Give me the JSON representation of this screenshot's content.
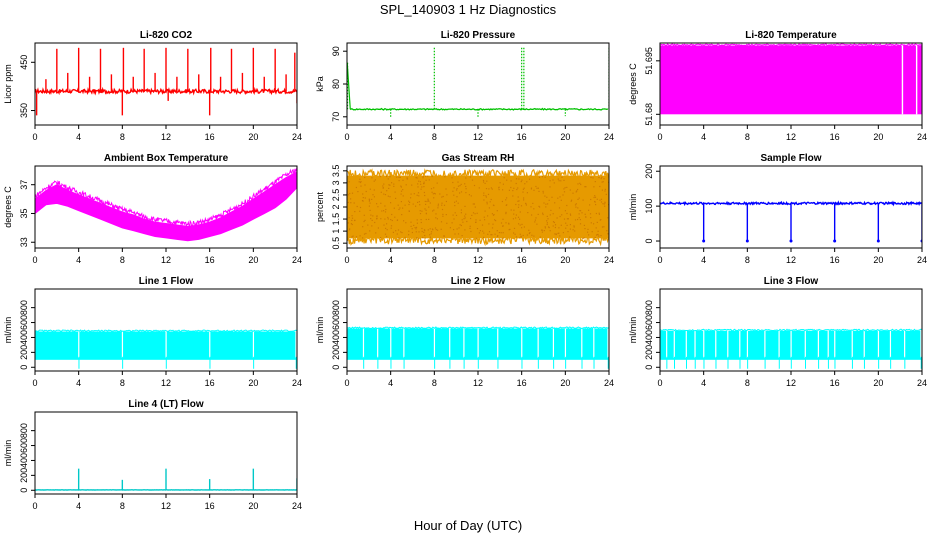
{
  "figure": {
    "title": "SPL_140903  1 Hz Diagnostics",
    "xlabel": "Hour of Day (UTC)"
  },
  "chart_data": [
    {
      "type": "line",
      "title": "Li-820 CO2",
      "ylabel": "Licor ppm",
      "color": "#ff0000",
      "xlim": [
        0,
        24
      ],
      "ylim": [
        320,
        490
      ],
      "xticks": [
        0,
        4,
        8,
        12,
        16,
        20,
        24
      ],
      "yticks": [
        350,
        450
      ],
      "baseline": 390,
      "noise": 4,
      "spikes": [
        {
          "x": 0.15,
          "y": 340
        },
        {
          "x": 1.0,
          "y": 415
        },
        {
          "x": 2.0,
          "y": 478
        },
        {
          "x": 3.0,
          "y": 428
        },
        {
          "x": 4.0,
          "y": 480
        },
        {
          "x": 5.0,
          "y": 420
        },
        {
          "x": 6.0,
          "y": 478
        },
        {
          "x": 7.0,
          "y": 425
        },
        {
          "x": 8.0,
          "y": 340
        },
        {
          "x": 8.1,
          "y": 480
        },
        {
          "x": 9.0,
          "y": 420
        },
        {
          "x": 10.0,
          "y": 478
        },
        {
          "x": 11.0,
          "y": 428
        },
        {
          "x": 12.0,
          "y": 480
        },
        {
          "x": 12.2,
          "y": 370
        },
        {
          "x": 13.0,
          "y": 420
        },
        {
          "x": 14.0,
          "y": 478
        },
        {
          "x": 15.0,
          "y": 425
        },
        {
          "x": 16.0,
          "y": 340
        },
        {
          "x": 16.1,
          "y": 480
        },
        {
          "x": 17.0,
          "y": 420
        },
        {
          "x": 18.0,
          "y": 478
        },
        {
          "x": 19.0,
          "y": 428
        },
        {
          "x": 20.0,
          "y": 480
        },
        {
          "x": 21.0,
          "y": 420
        },
        {
          "x": 22.0,
          "y": 478
        },
        {
          "x": 23.0,
          "y": 425
        },
        {
          "x": 23.8,
          "y": 470
        },
        {
          "x": 24.0,
          "y": 365
        }
      ]
    },
    {
      "type": "scatter",
      "title": "Li-820 Pressure",
      "ylabel": "kPa",
      "color": "#00c000",
      "xlim": [
        0,
        24
      ],
      "ylim": [
        67.5,
        92.5
      ],
      "xticks": [
        0,
        4,
        8,
        12,
        16,
        20,
        24
      ],
      "yticks": [
        70,
        80,
        90
      ],
      "baseline": 72.3,
      "spikes": [
        {
          "x": 0.05,
          "y": 86.5
        },
        {
          "x": 4.0,
          "y": 69.8
        },
        {
          "x": 8.0,
          "y": 91.5
        },
        {
          "x": 12.0,
          "y": 69.8
        },
        {
          "x": 16.0,
          "y": 91.5
        },
        {
          "x": 16.2,
          "y": 91.5
        },
        {
          "x": 20.0,
          "y": 70.2
        },
        {
          "x": 24.0,
          "y": 91.5
        }
      ]
    },
    {
      "type": "area",
      "title": "Li-820 Temperature",
      "ylabel": "degrees C",
      "color": "#ff00ff",
      "xlim": [
        0,
        24
      ],
      "ylim": [
        51.677,
        51.7
      ],
      "xticks": [
        0,
        4,
        8,
        12,
        16,
        20,
        24
      ],
      "yticks": [
        51.68,
        51.695
      ],
      "band": [
        51.68,
        51.6993
      ],
      "gaps": [
        22.2,
        23.5
      ]
    },
    {
      "type": "area",
      "title": "Ambient Box Temperature",
      "ylabel": "degrees C",
      "color": "#ff00ff",
      "xlim": [
        0,
        24
      ],
      "ylim": [
        32.6,
        38.3
      ],
      "xticks": [
        0,
        4,
        8,
        12,
        16,
        20,
        24
      ],
      "yticks": [
        33,
        35,
        37
      ],
      "x": [
        0,
        1,
        2,
        3,
        4,
        5,
        6,
        7,
        8,
        9,
        10,
        11,
        12,
        13,
        14,
        15,
        16,
        17,
        18,
        19,
        20,
        21,
        22,
        23,
        24
      ],
      "lower": [
        35.0,
        35.6,
        35.7,
        35.5,
        35.2,
        34.9,
        34.6,
        34.3,
        34.0,
        33.8,
        33.6,
        33.4,
        33.3,
        33.2,
        33.1,
        33.2,
        33.4,
        33.6,
        33.9,
        34.2,
        34.6,
        35.0,
        35.4,
        36.0,
        36.8
      ],
      "upper": [
        36.0,
        36.6,
        37.0,
        36.6,
        36.3,
        36.0,
        35.7,
        35.4,
        35.1,
        34.9,
        34.6,
        34.4,
        34.3,
        34.2,
        34.1,
        34.2,
        34.4,
        34.7,
        35.1,
        35.5,
        36.0,
        36.5,
        37.0,
        37.5,
        37.9
      ]
    },
    {
      "type": "area",
      "title": "Gas Stream RH",
      "ylabel": "percent",
      "color": "#e69a00",
      "xlim": [
        0,
        24
      ],
      "ylim": [
        0.3,
        3.7
      ],
      "xticks": [
        0,
        4,
        8,
        12,
        16,
        20,
        24
      ],
      "yticks": [
        0.5,
        1.0,
        1.5,
        2.0,
        2.5,
        3.0,
        3.5
      ],
      "band": [
        0.7,
        3.3
      ],
      "jitter": 0.35
    },
    {
      "type": "line",
      "title": "Sample Flow",
      "ylabel": "ml/min",
      "color": "#0000ff",
      "xlim": [
        0,
        24
      ],
      "ylim": [
        -20,
        215
      ],
      "xticks": [
        0,
        4,
        8,
        12,
        16,
        20,
        24
      ],
      "yticks": [
        0,
        100,
        200
      ],
      "baseline": 108,
      "noise": 3,
      "spikes": [
        {
          "x": 4.0,
          "y": 0
        },
        {
          "x": 8.0,
          "y": 0
        },
        {
          "x": 12.0,
          "y": 0
        },
        {
          "x": 16.0,
          "y": 0
        },
        {
          "x": 20.0,
          "y": 0
        },
        {
          "x": 24.0,
          "y": 0
        }
      ]
    },
    {
      "type": "area",
      "title": "Line 1 Flow",
      "ylabel": "ml/min",
      "color": "#00ffff",
      "xlim": [
        0,
        24
      ],
      "ylim": [
        -50,
        1050
      ],
      "xticks": [
        0,
        4,
        8,
        12,
        16,
        20,
        24
      ],
      "yticks": [
        0,
        200,
        400,
        600,
        800
      ],
      "band": [
        100,
        480
      ],
      "cuts": [
        4.0,
        8.0,
        12.0,
        16.0,
        20.0,
        23.9
      ]
    },
    {
      "type": "area",
      "title": "Line 2 Flow",
      "ylabel": "ml/min",
      "color": "#00ffff",
      "xlim": [
        0,
        24
      ],
      "ylim": [
        -50,
        1050
      ],
      "xticks": [
        0,
        4,
        8,
        12,
        16,
        20,
        24
      ],
      "yticks": [
        0,
        200,
        400,
        600,
        800
      ],
      "band": [
        100,
        520
      ],
      "cuts": [
        1.5,
        2.8,
        4.0,
        5.2,
        8.0,
        9.4,
        10.7,
        12.0,
        13.8,
        16.0,
        17.5,
        18.9,
        20.0,
        21.5,
        22.6,
        23.9
      ]
    },
    {
      "type": "area",
      "title": "Line 3 Flow",
      "ylabel": "ml/min",
      "color": "#00ffff",
      "xlim": [
        0,
        24
      ],
      "ylim": [
        -50,
        1050
      ],
      "xticks": [
        0,
        4,
        8,
        12,
        16,
        20,
        24
      ],
      "yticks": [
        0,
        200,
        400,
        600,
        800
      ],
      "band": [
        100,
        490
      ],
      "cuts": [
        0.6,
        1.3,
        2.4,
        3.2,
        4.0,
        5.1,
        6.2,
        7.3,
        8.0,
        9.6,
        10.9,
        12.0,
        13.3,
        14.5,
        15.4,
        16.0,
        17.6,
        18.7,
        20.0,
        21.1,
        22.4,
        23.9
      ]
    },
    {
      "type": "line",
      "title": "Line 4 (LT) Flow",
      "ylabel": "ml/min",
      "color": "#00c8c8",
      "xlim": [
        0,
        24
      ],
      "ylim": [
        -50,
        1050
      ],
      "xticks": [
        0,
        4,
        8,
        12,
        16,
        20,
        24
      ],
      "yticks": [
        0,
        200,
        400,
        600,
        800
      ],
      "baseline": 5,
      "noise": 2,
      "spikes": [
        {
          "x": 4.0,
          "y": 290
        },
        {
          "x": 8.0,
          "y": 140
        },
        {
          "x": 12.0,
          "y": 290
        },
        {
          "x": 16.0,
          "y": 150
        },
        {
          "x": 20.0,
          "y": 290
        },
        {
          "x": 24.0,
          "y": 160
        }
      ]
    }
  ]
}
